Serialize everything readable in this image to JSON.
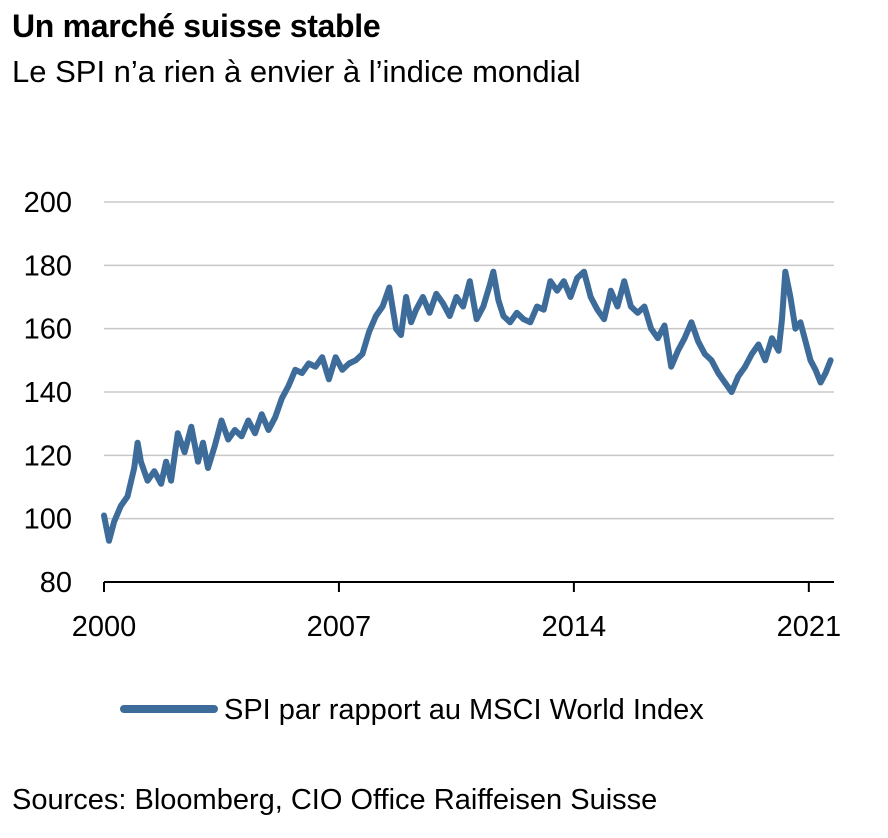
{
  "title": "Un marché suisse stable",
  "subtitle": "Le SPI n’a rien à envier à l’indice mondial",
  "source": "Sources: Bloomberg, CIO Office Raiffeisen Suisse",
  "colors": {
    "series": "#3d6b9a",
    "grid": "#c8c8c8",
    "axis": "#000000"
  },
  "chart_data": {
    "type": "line",
    "title": "Un marché suisse stable",
    "subtitle": "Le SPI n’a rien à envier à l’indice mondial",
    "xlabel": "",
    "ylabel": "",
    "ylim": [
      80,
      200
    ],
    "xlim": [
      2000,
      2021.75
    ],
    "yticks": [
      80,
      100,
      120,
      140,
      160,
      180,
      200
    ],
    "xticks": [
      2000,
      2007,
      2014,
      2021
    ],
    "xtick_labels": [
      "2000",
      "2007",
      "2014",
      "2021"
    ],
    "grid": "horizontal",
    "legend_position": "bottom",
    "series": [
      {
        "name": "SPI par rapport au MSCI World Index",
        "x": [
          2000.0,
          2000.15,
          2000.3,
          2000.5,
          2000.7,
          2000.9,
          2001.0,
          2001.1,
          2001.3,
          2001.5,
          2001.7,
          2001.85,
          2002.0,
          2002.2,
          2002.4,
          2002.6,
          2002.8,
          2002.95,
          2003.1,
          2003.3,
          2003.5,
          2003.7,
          2003.9,
          2004.1,
          2004.3,
          2004.5,
          2004.7,
          2004.9,
          2005.1,
          2005.3,
          2005.5,
          2005.7,
          2005.9,
          2006.1,
          2006.3,
          2006.5,
          2006.7,
          2006.9,
          2007.1,
          2007.3,
          2007.5,
          2007.7,
          2007.9,
          2008.1,
          2008.3,
          2008.5,
          2008.7,
          2008.85,
          2009.0,
          2009.15,
          2009.3,
          2009.5,
          2009.7,
          2009.9,
          2010.1,
          2010.3,
          2010.5,
          2010.7,
          2010.9,
          2011.1,
          2011.3,
          2011.5,
          2011.6,
          2011.75,
          2011.9,
          2012.1,
          2012.3,
          2012.5,
          2012.7,
          2012.9,
          2013.1,
          2013.3,
          2013.5,
          2013.7,
          2013.9,
          2014.1,
          2014.3,
          2014.5,
          2014.7,
          2014.9,
          2015.1,
          2015.3,
          2015.5,
          2015.7,
          2015.9,
          2016.1,
          2016.3,
          2016.5,
          2016.7,
          2016.9,
          2017.1,
          2017.3,
          2017.5,
          2017.7,
          2017.9,
          2018.1,
          2018.3,
          2018.5,
          2018.7,
          2018.9,
          2019.1,
          2019.3,
          2019.5,
          2019.7,
          2019.9,
          2020.1,
          2020.2,
          2020.3,
          2020.45,
          2020.6,
          2020.75,
          2020.9,
          2021.05,
          2021.2,
          2021.35,
          2021.5,
          2021.65
        ],
        "y": [
          101,
          93,
          99,
          104,
          107,
          116,
          124,
          118,
          112,
          115,
          111,
          118,
          112,
          127,
          121,
          129,
          118,
          124,
          116,
          123,
          131,
          125,
          128,
          126,
          131,
          127,
          133,
          128,
          132,
          138,
          142,
          147,
          146,
          149,
          148,
          151,
          144,
          151,
          147,
          149,
          150,
          152,
          159,
          164,
          167,
          173,
          160,
          158,
          170,
          162,
          166,
          170,
          165,
          171,
          168,
          164,
          170,
          167,
          175,
          163,
          167,
          174,
          178,
          169,
          164,
          162,
          165,
          163,
          162,
          167,
          166,
          175,
          172,
          175,
          170,
          176,
          178,
          170,
          166,
          163,
          172,
          167,
          175,
          167,
          165,
          167,
          160,
          157,
          161,
          148,
          153,
          157,
          162,
          156,
          152,
          150,
          146,
          143,
          140,
          145,
          148,
          152,
          155,
          150,
          157,
          153,
          163,
          178,
          170,
          160,
          162,
          156,
          150,
          147,
          143,
          146,
          150
        ]
      }
    ]
  }
}
